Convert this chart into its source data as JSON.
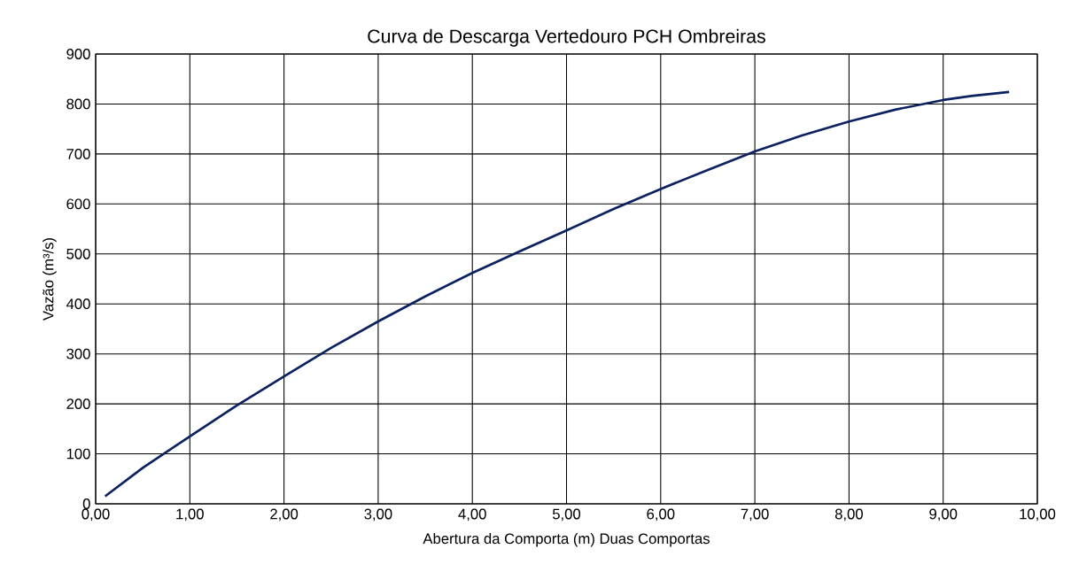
{
  "chart_data": {
    "type": "line",
    "title": "Curva de Descarga Vertedouro PCH Ombreiras",
    "xlabel": "Abertura da Comporta (m) Duas Comportas",
    "ylabel": "Vazão (m³/s)",
    "x": [
      0.1,
      0.5,
      1.0,
      1.5,
      2.0,
      2.5,
      3.0,
      3.5,
      4.0,
      4.5,
      5.0,
      5.5,
      6.0,
      6.5,
      7.0,
      7.5,
      8.0,
      8.5,
      9.0,
      9.3,
      9.7
    ],
    "values": [
      15,
      72,
      135,
      197,
      255,
      312,
      365,
      415,
      462,
      505,
      547,
      590,
      630,
      668,
      705,
      737,
      765,
      789,
      808,
      816,
      824
    ],
    "color": "#0b2160",
    "xlim": [
      0,
      10
    ],
    "ylim": [
      0,
      900
    ],
    "xticks": [
      {
        "value": 0,
        "label": "0,00"
      },
      {
        "value": 1,
        "label": "1,00"
      },
      {
        "value": 2,
        "label": "2,00"
      },
      {
        "value": 3,
        "label": "3,00"
      },
      {
        "value": 4,
        "label": "4,00"
      },
      {
        "value": 5,
        "label": "5,00"
      },
      {
        "value": 6,
        "label": "6,00"
      },
      {
        "value": 7,
        "label": "7,00"
      },
      {
        "value": 8,
        "label": "8,00"
      },
      {
        "value": 9,
        "label": "9,00"
      },
      {
        "value": 10,
        "label": "10,00"
      }
    ],
    "yticks": [
      0,
      100,
      200,
      300,
      400,
      500,
      600,
      700,
      800,
      900
    ],
    "grid": true
  }
}
